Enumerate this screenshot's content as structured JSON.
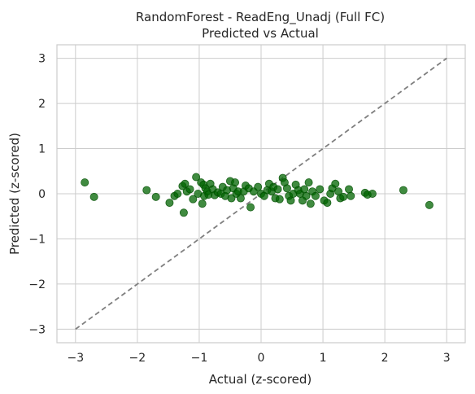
{
  "chart_data": {
    "type": "scatter",
    "title": "RandomForest - ReadEng_Unadj (Full FC)",
    "subtitle": "Predicted vs Actual",
    "xlabel": "Actual (z-scored)",
    "ylabel": "Predicted (z-scored)",
    "xlim": [
      -3.3,
      3.3
    ],
    "ylim": [
      -3.3,
      3.3
    ],
    "xticks": [
      -3,
      -2,
      -1,
      0,
      1,
      2,
      3
    ],
    "yticks": [
      -3,
      -2,
      -1,
      0,
      1,
      2,
      3
    ],
    "xtick_labels": [
      "−3",
      "−2",
      "−1",
      "0",
      "1",
      "2",
      "3"
    ],
    "ytick_labels": [
      "−3",
      "−2",
      "−1",
      "0",
      "1",
      "2",
      "3"
    ],
    "grid": true,
    "point_color": "#006400",
    "reference_line": {
      "x": [
        -3,
        3
      ],
      "y": [
        -3,
        3
      ],
      "style": "dashed",
      "color": "#7f7f7f"
    },
    "points": [
      {
        "x": -2.85,
        "y": 0.25
      },
      {
        "x": -2.7,
        "y": -0.07
      },
      {
        "x": -1.85,
        "y": 0.08
      },
      {
        "x": -1.7,
        "y": -0.07
      },
      {
        "x": -1.48,
        "y": -0.2
      },
      {
        "x": -1.4,
        "y": -0.05
      },
      {
        "x": -1.35,
        "y": 0.0
      },
      {
        "x": -1.27,
        "y": 0.17
      },
      {
        "x": -1.25,
        "y": -0.42
      },
      {
        "x": -1.23,
        "y": 0.22
      },
      {
        "x": -1.2,
        "y": 0.05
      },
      {
        "x": -1.15,
        "y": 0.1
      },
      {
        "x": -1.1,
        "y": -0.12
      },
      {
        "x": -1.05,
        "y": 0.37
      },
      {
        "x": -1.02,
        "y": 0.0
      },
      {
        "x": -0.97,
        "y": 0.25
      },
      {
        "x": -0.95,
        "y": -0.22
      },
      {
        "x": -0.93,
        "y": 0.2
      },
      {
        "x": -0.92,
        "y": -0.05
      },
      {
        "x": -0.9,
        "y": 0.12
      },
      {
        "x": -0.87,
        "y": 0.05
      },
      {
        "x": -0.85,
        "y": -0.02
      },
      {
        "x": -0.82,
        "y": 0.22
      },
      {
        "x": -0.78,
        "y": 0.1
      },
      {
        "x": -0.75,
        "y": -0.03
      },
      {
        "x": -0.7,
        "y": 0.03
      },
      {
        "x": -0.65,
        "y": 0.0
      },
      {
        "x": -0.62,
        "y": 0.15
      },
      {
        "x": -0.58,
        "y": -0.05
      },
      {
        "x": -0.55,
        "y": 0.08
      },
      {
        "x": -0.5,
        "y": 0.28
      },
      {
        "x": -0.48,
        "y": -0.1
      },
      {
        "x": -0.45,
        "y": 0.12
      },
      {
        "x": -0.42,
        "y": 0.25
      },
      {
        "x": -0.4,
        "y": 0.0
      },
      {
        "x": -0.37,
        "y": 0.05
      },
      {
        "x": -0.33,
        "y": -0.1
      },
      {
        "x": -0.28,
        "y": 0.05
      },
      {
        "x": -0.25,
        "y": 0.18
      },
      {
        "x": -0.2,
        "y": 0.12
      },
      {
        "x": -0.17,
        "y": -0.3
      },
      {
        "x": -0.12,
        "y": 0.05
      },
      {
        "x": -0.05,
        "y": 0.15
      },
      {
        "x": 0.0,
        "y": 0.0
      },
      {
        "x": 0.05,
        "y": -0.05
      },
      {
        "x": 0.1,
        "y": 0.08
      },
      {
        "x": 0.13,
        "y": 0.22
      },
      {
        "x": 0.17,
        "y": 0.05
      },
      {
        "x": 0.2,
        "y": 0.15
      },
      {
        "x": 0.23,
        "y": -0.1
      },
      {
        "x": 0.27,
        "y": 0.1
      },
      {
        "x": 0.3,
        "y": -0.12
      },
      {
        "x": 0.35,
        "y": 0.35
      },
      {
        "x": 0.38,
        "y": 0.25
      },
      {
        "x": 0.42,
        "y": 0.12
      },
      {
        "x": 0.45,
        "y": -0.05
      },
      {
        "x": 0.48,
        "y": -0.15
      },
      {
        "x": 0.52,
        "y": 0.0
      },
      {
        "x": 0.56,
        "y": 0.2
      },
      {
        "x": 0.6,
        "y": 0.08
      },
      {
        "x": 0.63,
        "y": 0.0
      },
      {
        "x": 0.67,
        "y": -0.15
      },
      {
        "x": 0.7,
        "y": 0.1
      },
      {
        "x": 0.73,
        "y": -0.05
      },
      {
        "x": 0.77,
        "y": 0.25
      },
      {
        "x": 0.8,
        "y": -0.22
      },
      {
        "x": 0.83,
        "y": 0.05
      },
      {
        "x": 0.88,
        "y": -0.05
      },
      {
        "x": 0.95,
        "y": 0.1
      },
      {
        "x": 1.02,
        "y": -0.15
      },
      {
        "x": 1.07,
        "y": -0.2
      },
      {
        "x": 1.12,
        "y": 0.0
      },
      {
        "x": 1.15,
        "y": 0.12
      },
      {
        "x": 1.2,
        "y": 0.22
      },
      {
        "x": 1.25,
        "y": 0.05
      },
      {
        "x": 1.28,
        "y": -0.1
      },
      {
        "x": 1.33,
        "y": -0.07
      },
      {
        "x": 1.42,
        "y": 0.1
      },
      {
        "x": 1.45,
        "y": -0.05
      },
      {
        "x": 1.68,
        "y": 0.02
      },
      {
        "x": 1.72,
        "y": -0.02
      },
      {
        "x": 1.8,
        "y": 0.0
      },
      {
        "x": 2.3,
        "y": 0.08
      },
      {
        "x": 2.72,
        "y": -0.25
      }
    ]
  }
}
